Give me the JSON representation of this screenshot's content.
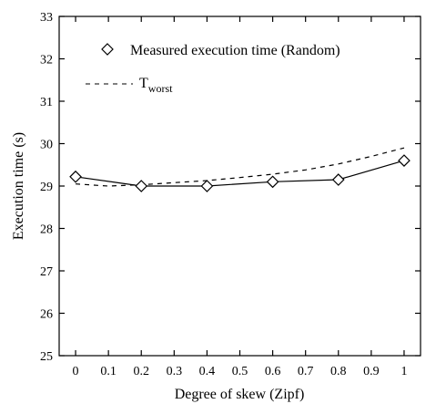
{
  "chart_data": {
    "type": "line",
    "xlabel": "Degree of skew (Zipf)",
    "ylabel": "Execution time (s)",
    "xlim": [
      -0.05,
      1.05
    ],
    "ylim": [
      25,
      33
    ],
    "x_ticks": [
      "0",
      "0.1",
      "0.2",
      "0.3",
      "0.4",
      "0.5",
      "0.6",
      "0.7",
      "0.8",
      "0.9",
      "1"
    ],
    "x_tick_values": [
      0,
      0.1,
      0.2,
      0.3,
      0.4,
      0.5,
      0.6,
      0.7,
      0.8,
      0.9,
      1.0
    ],
    "y_ticks": [
      "25",
      "26",
      "27",
      "28",
      "29",
      "30",
      "31",
      "32",
      "33"
    ],
    "y_tick_values": [
      25,
      26,
      27,
      28,
      29,
      30,
      31,
      32,
      33
    ],
    "grid": false,
    "legend_position": "top-left",
    "series": [
      {
        "name": "Measured execution time (Random)",
        "style": "solid",
        "marker": "diamond",
        "color": "#000000",
        "x": [
          0,
          0.2,
          0.4,
          0.6,
          0.8,
          1.0
        ],
        "y": [
          29.22,
          29.0,
          29.0,
          29.1,
          29.15,
          29.6
        ]
      },
      {
        "name_main": "T",
        "name_sub": "worst",
        "style": "dashed",
        "marker": "none",
        "color": "#000000",
        "x": [
          0,
          0.1,
          0.2,
          0.3,
          0.4,
          0.5,
          0.6,
          0.7,
          0.8,
          0.9,
          1.0
        ],
        "y": [
          29.05,
          29.0,
          29.03,
          29.08,
          29.13,
          29.2,
          29.28,
          29.38,
          29.52,
          29.7,
          29.9
        ]
      }
    ]
  }
}
